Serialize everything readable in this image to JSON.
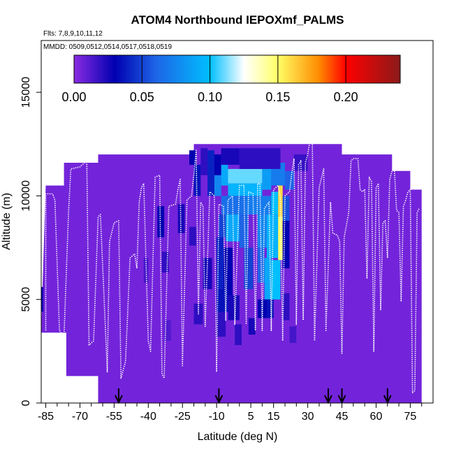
{
  "chart_data": {
    "type": "heatmap",
    "title": "ATOM4 Northbound IEPOXmf_PALMS",
    "flights_text": "Flts: 7,8,9,10,11,12",
    "dates_text": "MMDD: 0509,0512,0514,0517,0518,0519",
    "xlabel": "Latitude (deg N)",
    "ylabel": "Altitude (m)",
    "xlim": [
      -87,
      85
    ],
    "ylim": [
      0,
      17500
    ],
    "x_ticks": [
      {
        "v": -85,
        "label": "-85"
      },
      {
        "v": -70,
        "label": "-70"
      },
      {
        "v": -55,
        "label": "-55"
      },
      {
        "v": -40,
        "label": "-40"
      },
      {
        "v": -25,
        "label": "-25"
      },
      {
        "v": -10,
        "label": "-10"
      },
      {
        "v": 5,
        "label": "5"
      },
      {
        "v": 15,
        "label": "15"
      },
      {
        "v": 30,
        "label": "30"
      },
      {
        "v": 45,
        "label": "45"
      },
      {
        "v": 60,
        "label": "60"
      },
      {
        "v": 75,
        "label": "75"
      }
    ],
    "x_minor_ticks": [
      -80,
      -75,
      -65,
      -60,
      -50,
      -45,
      -35,
      -30,
      -20,
      -15,
      -5,
      0,
      10,
      20,
      25,
      35,
      40,
      50,
      55,
      65,
      70,
      80
    ],
    "y_ticks": [
      {
        "v": 0,
        "label": "0"
      },
      {
        "v": 5000,
        "label": "5000"
      },
      {
        "v": 10000,
        "label": "10000"
      },
      {
        "v": 15000,
        "label": "15000"
      }
    ],
    "colorbar": {
      "range": [
        0,
        0.24
      ],
      "ticks": [
        {
          "v": 0.0,
          "label": "0.00"
        },
        {
          "v": 0.05,
          "label": "0.05"
        },
        {
          "v": 0.1,
          "label": "0.10"
        },
        {
          "v": 0.15,
          "label": "0.15"
        },
        {
          "v": 0.2,
          "label": "0.20"
        }
      ],
      "stops": [
        {
          "v": 0.0,
          "color": "#8a2be2"
        },
        {
          "v": 0.03,
          "color": "#0000b0"
        },
        {
          "v": 0.06,
          "color": "#1e64e6"
        },
        {
          "v": 0.1,
          "color": "#00bfff"
        },
        {
          "v": 0.125,
          "color": "#ffffff"
        },
        {
          "v": 0.15,
          "color": "#ffff66"
        },
        {
          "v": 0.18,
          "color": "#ff8c00"
        },
        {
          "v": 0.2,
          "color": "#ff0000"
        },
        {
          "v": 0.24,
          "color": "#8b1a1a"
        }
      ]
    },
    "background_value": 0.005,
    "domain_boundary": [
      [
        -87,
        3600
      ],
      [
        -85,
        10500
      ],
      [
        -77,
        10500
      ],
      [
        -77,
        11600
      ],
      [
        -62,
        11600
      ],
      [
        -62,
        12000
      ],
      [
        -20,
        12000
      ],
      [
        -20,
        12500
      ],
      [
        45,
        12500
      ],
      [
        45,
        12000
      ],
      [
        67,
        12000
      ],
      [
        67,
        11200
      ],
      [
        75,
        11200
      ],
      [
        75,
        10300
      ],
      [
        80,
        10300
      ],
      [
        80,
        0
      ],
      [
        -62,
        0
      ],
      [
        -62,
        1300
      ],
      [
        -76,
        1300
      ],
      [
        -76,
        3400
      ],
      [
        -87,
        3400
      ]
    ],
    "cells": [
      {
        "lat": [
          -22,
          -19
        ],
        "alt": [
          11500,
          12200
        ],
        "v": 0.03
      },
      {
        "lat": [
          -20,
          -17
        ],
        "alt": [
          10000,
          11500
        ],
        "v": 0.035
      },
      {
        "lat": [
          -17,
          -14
        ],
        "alt": [
          11000,
          12300
        ],
        "v": 0.02
      },
      {
        "lat": [
          -14,
          -11
        ],
        "alt": [
          10000,
          12200
        ],
        "v": 0.04
      },
      {
        "lat": [
          -11,
          -8
        ],
        "alt": [
          10000,
          11000
        ],
        "v": 0.075
      },
      {
        "lat": [
          -11,
          -8
        ],
        "alt": [
          11000,
          12000
        ],
        "v": 0.03
      },
      {
        "lat": [
          -8,
          -5
        ],
        "alt": [
          10500,
          11500
        ],
        "v": 0.09
      },
      {
        "lat": [
          -8,
          0
        ],
        "alt": [
          11500,
          12300
        ],
        "v": 0.025
      },
      {
        "lat": [
          -5,
          10
        ],
        "alt": [
          10600,
          11300
        ],
        "v": 0.11
      },
      {
        "lat": [
          -5,
          10
        ],
        "alt": [
          10000,
          10600
        ],
        "v": 0.095
      },
      {
        "lat": [
          10,
          14
        ],
        "alt": [
          10300,
          11300
        ],
        "v": 0.085
      },
      {
        "lat": [
          14,
          20
        ],
        "alt": [
          10500,
          11600
        ],
        "v": 0.07
      },
      {
        "lat": [
          20,
          24
        ],
        "alt": [
          10300,
          11200
        ],
        "v": 0.06
      },
      {
        "lat": [
          0,
          18
        ],
        "alt": [
          11300,
          12300
        ],
        "v": 0.02
      },
      {
        "lat": [
          24,
          30
        ],
        "alt": [
          11200,
          12000
        ],
        "v": 0.018
      },
      {
        "lat": [
          -8,
          3
        ],
        "alt": [
          9100,
          10000
        ],
        "v": 0.065
      },
      {
        "lat": [
          3,
          14
        ],
        "alt": [
          9100,
          10000
        ],
        "v": 0.07
      },
      {
        "lat": [
          14,
          17
        ],
        "alt": [
          9100,
          10200
        ],
        "v": 0.1
      },
      {
        "lat": [
          17,
          19
        ],
        "alt": [
          9000,
          10500
        ],
        "v": 0.16
      },
      {
        "lat": [
          19,
          22
        ],
        "alt": [
          8800,
          10000
        ],
        "v": 0.055
      },
      {
        "lat": [
          -9,
          -6
        ],
        "alt": [
          8000,
          9100
        ],
        "v": 0.05
      },
      {
        "lat": [
          -6,
          0
        ],
        "alt": [
          7800,
          9100
        ],
        "v": 0.09
      },
      {
        "lat": [
          0,
          4
        ],
        "alt": [
          7500,
          9100
        ],
        "v": 0.06
      },
      {
        "lat": [
          8,
          12
        ],
        "alt": [
          7500,
          9100
        ],
        "v": 0.075
      },
      {
        "lat": [
          12,
          17
        ],
        "alt": [
          7000,
          9100
        ],
        "v": 0.095
      },
      {
        "lat": [
          17,
          19
        ],
        "alt": [
          6900,
          9000
        ],
        "v": 0.15
      },
      {
        "lat": [
          19,
          22
        ],
        "alt": [
          6500,
          8800
        ],
        "v": 0.03
      },
      {
        "lat": [
          -36,
          -33
        ],
        "alt": [
          8000,
          9500
        ],
        "v": 0.03
      },
      {
        "lat": [
          -27,
          -24
        ],
        "alt": [
          8200,
          9600
        ],
        "v": 0.025
      },
      {
        "lat": [
          -22,
          -19
        ],
        "alt": [
          7600,
          8500
        ],
        "v": 0.02
      },
      {
        "lat": [
          -34,
          -31
        ],
        "alt": [
          6300,
          7300
        ],
        "v": 0.02
      },
      {
        "lat": [
          -16,
          -12
        ],
        "alt": [
          5500,
          7000
        ],
        "v": 0.025
      },
      {
        "lat": [
          -10,
          -7
        ],
        "alt": [
          5500,
          8000
        ],
        "v": 0.04
      },
      {
        "lat": [
          -7,
          -3
        ],
        "alt": [
          5200,
          7500
        ],
        "v": 0.03
      },
      {
        "lat": [
          2,
          6
        ],
        "alt": [
          5500,
          7500
        ],
        "v": 0.05
      },
      {
        "lat": [
          8,
          11
        ],
        "alt": [
          5800,
          7500
        ],
        "v": 0.06
      },
      {
        "lat": [
          11,
          14
        ],
        "alt": [
          5000,
          7000
        ],
        "v": 0.09
      },
      {
        "lat": [
          14,
          18
        ],
        "alt": [
          5000,
          6900
        ],
        "v": 0.1
      },
      {
        "lat": [
          -10,
          -5
        ],
        "alt": [
          4400,
          5500
        ],
        "v": 0.035
      },
      {
        "lat": [
          -5,
          0
        ],
        "alt": [
          4000,
          5200
        ],
        "v": 0.025
      },
      {
        "lat": [
          8,
          12
        ],
        "alt": [
          4100,
          5000
        ],
        "v": 0.03
      },
      {
        "lat": [
          12,
          15
        ],
        "alt": [
          4100,
          5000
        ],
        "v": 0.035
      },
      {
        "lat": [
          19,
          22
        ],
        "alt": [
          4000,
          5300
        ],
        "v": 0.02
      },
      {
        "lat": [
          -20,
          -16
        ],
        "alt": [
          3800,
          4800
        ],
        "v": 0.02
      },
      {
        "lat": [
          -10,
          -6
        ],
        "alt": [
          3200,
          4400
        ],
        "v": 0.02
      },
      {
        "lat": [
          -2,
          1
        ],
        "alt": [
          2800,
          3800
        ],
        "v": 0.02
      },
      {
        "lat": [
          4,
          7
        ],
        "alt": [
          3300,
          4100
        ],
        "v": 0.025
      },
      {
        "lat": [
          22,
          25
        ],
        "alt": [
          2900,
          3700
        ],
        "v": 0.015
      },
      {
        "lat": [
          -88,
          -86
        ],
        "alt": [
          4400,
          5600
        ],
        "v": 0.025
      },
      {
        "lat": [
          -42,
          -40
        ],
        "alt": [
          5800,
          7000
        ],
        "v": 0.015
      },
      {
        "lat": [
          -33,
          -30
        ],
        "alt": [
          3000,
          4000
        ],
        "v": 0.012
      }
    ],
    "flight_tracks": [
      [
        [
          -85,
          3500
        ],
        [
          -85,
          10100
        ],
        [
          -82,
          10100
        ],
        [
          -81,
          9800
        ],
        [
          -79,
          3500
        ],
        [
          -77,
          3200
        ],
        [
          -75,
          9200
        ],
        [
          -74,
          11300
        ],
        [
          -70,
          11400
        ],
        [
          -68,
          11600
        ],
        [
          -67,
          11800
        ],
        [
          -66,
          2800
        ],
        [
          -64,
          3000
        ],
        [
          -62,
          9000
        ],
        [
          -61,
          9100
        ],
        [
          -58,
          1500
        ],
        [
          -57,
          7800
        ],
        [
          -55,
          8700
        ],
        [
          -53,
          8800
        ],
        [
          -52,
          1200
        ],
        [
          -50,
          2000
        ],
        [
          -48,
          7000
        ],
        [
          -46,
          7200
        ],
        [
          -45,
          6500
        ],
        [
          -44,
          9700
        ],
        [
          -43,
          10400
        ],
        [
          -42,
          10600
        ],
        [
          -40,
          3000
        ],
        [
          -39,
          2500
        ],
        [
          -37,
          10900
        ],
        [
          -35,
          11000
        ],
        [
          -34,
          1400
        ],
        [
          -33,
          1200
        ],
        [
          -31,
          9500
        ],
        [
          -28,
          9600
        ],
        [
          -27,
          10300
        ],
        [
          -26,
          10800
        ],
        [
          -25,
          1800
        ],
        [
          -23,
          9800
        ],
        [
          -21,
          10000
        ],
        [
          -20,
          11000
        ],
        [
          -19,
          12200
        ],
        [
          -18,
          4300
        ],
        [
          -17,
          9700
        ],
        [
          -16,
          9500
        ],
        [
          -15,
          3700
        ],
        [
          -13,
          10200
        ],
        [
          -11,
          10000
        ],
        [
          -10,
          1500
        ],
        [
          -9,
          9600
        ],
        [
          -7,
          9500
        ],
        [
          -6,
          4000
        ],
        [
          -5,
          9800
        ],
        [
          -3,
          10000
        ],
        [
          -2,
          3800
        ],
        [
          0,
          10500
        ],
        [
          2,
          10500
        ],
        [
          3,
          3800
        ],
        [
          4,
          10200
        ],
        [
          6,
          10100
        ],
        [
          7,
          3500
        ],
        [
          8,
          10600
        ],
        [
          9,
          10600
        ],
        [
          10,
          3500
        ],
        [
          11,
          9400
        ],
        [
          13,
          9700
        ],
        [
          14,
          3500
        ],
        [
          15,
          10300
        ],
        [
          17,
          10500
        ],
        [
          18,
          9900
        ],
        [
          19,
          3000
        ],
        [
          20,
          10000
        ],
        [
          22,
          10200
        ],
        [
          23,
          11100
        ],
        [
          24,
          11800
        ],
        [
          25,
          3800
        ],
        [
          26,
          11500
        ],
        [
          27,
          11700
        ],
        [
          28,
          4000
        ],
        [
          29,
          11600
        ],
        [
          30,
          12000
        ],
        [
          31,
          12700
        ],
        [
          32,
          12700
        ],
        [
          33,
          3000
        ],
        [
          35,
          10400
        ],
        [
          37,
          11300
        ],
        [
          38,
          3500
        ],
        [
          40,
          9700
        ],
        [
          41,
          8200
        ],
        [
          43,
          8100
        ],
        [
          44,
          7800
        ],
        [
          45,
          2400
        ],
        [
          46,
          8000
        ],
        [
          47,
          8600
        ],
        [
          48,
          9200
        ],
        [
          49,
          11700
        ],
        [
          50,
          11800
        ],
        [
          52,
          11800
        ],
        [
          53,
          10300
        ],
        [
          54,
          10200
        ],
        [
          55,
          10300
        ],
        [
          56,
          6000
        ],
        [
          57,
          10900
        ],
        [
          58,
          10700
        ],
        [
          59,
          2500
        ],
        [
          60,
          10400
        ],
        [
          61,
          10600
        ],
        [
          62,
          4500
        ],
        [
          63,
          8700
        ],
        [
          64,
          8800
        ],
        [
          65,
          7000
        ],
        [
          66,
          10800
        ],
        [
          67,
          11200
        ],
        [
          68,
          11300
        ],
        [
          69,
          9300
        ],
        [
          70,
          9200
        ],
        [
          71,
          4900
        ],
        [
          72,
          9500
        ],
        [
          73,
          9800
        ],
        [
          74,
          10200
        ],
        [
          75,
          10300
        ],
        [
          76,
          500
        ],
        [
          77,
          600
        ],
        [
          78,
          9200
        ],
        [
          79,
          9400
        ]
      ]
    ],
    "arrow_lats": [
      -53,
      -9,
      39,
      45,
      65
    ]
  }
}
